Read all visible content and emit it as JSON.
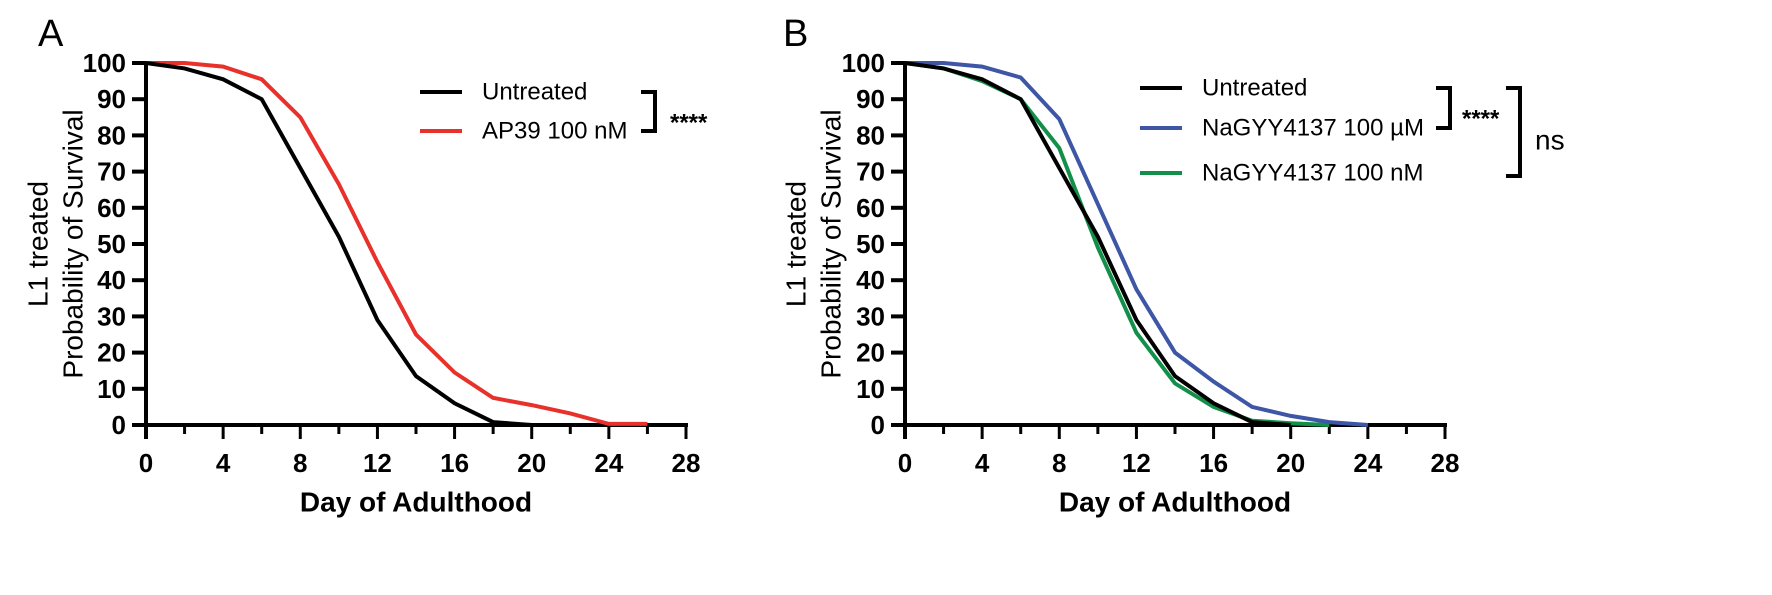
{
  "chart_data": [
    {
      "type": "line",
      "panel": "A",
      "title": "",
      "xlabel": "Day of Adulthood",
      "ylabel_lines": [
        "L1 treated",
        "Probability of Survival"
      ],
      "xlim": [
        0,
        28
      ],
      "ylim": [
        0,
        100
      ],
      "x_ticks": [
        0,
        4,
        8,
        12,
        16,
        20,
        24,
        28
      ],
      "x_minor_step": 2,
      "y_ticks": [
        0,
        10,
        20,
        30,
        40,
        50,
        60,
        70,
        80,
        90,
        100
      ],
      "grid": false,
      "legend_position": "top-right",
      "series": [
        {
          "name": "Untreated",
          "color": "#000000",
          "x": [
            0,
            2,
            4,
            6,
            8,
            10,
            12,
            14,
            16,
            18,
            20
          ],
          "y": [
            100,
            98.5,
            95.5,
            90,
            71,
            52,
            29,
            13.5,
            6,
            0.8,
            0
          ]
        },
        {
          "name": "AP39 100 nM",
          "color": "#e8312a",
          "x": [
            0,
            2,
            4,
            6,
            8,
            10,
            12,
            14,
            16,
            18,
            20,
            22,
            24,
            26
          ],
          "y": [
            100,
            100,
            99,
            95.5,
            85,
            66.5,
            45,
            25,
            14.5,
            7.5,
            5.5,
            3.2,
            0.3,
            0.3
          ]
        }
      ],
      "annotations": [
        {
          "type": "bracket",
          "between": [
            "Untreated",
            "AP39 100 nM"
          ],
          "label": "****"
        }
      ]
    },
    {
      "type": "line",
      "panel": "B",
      "title": "",
      "xlabel": "Day of Adulthood",
      "ylabel_lines": [
        "L1 treated",
        "Probability of Survival"
      ],
      "xlim": [
        0,
        28
      ],
      "ylim": [
        0,
        100
      ],
      "x_ticks": [
        0,
        4,
        8,
        12,
        16,
        20,
        24,
        28
      ],
      "x_minor_step": 2,
      "y_ticks": [
        0,
        10,
        20,
        30,
        40,
        50,
        60,
        70,
        80,
        90,
        100
      ],
      "grid": false,
      "legend_position": "top-right",
      "series": [
        {
          "name": "Untreated",
          "color": "#000000",
          "x": [
            0,
            2,
            4,
            6,
            8,
            10,
            12,
            14,
            16,
            18,
            20
          ],
          "y": [
            100,
            98.5,
            95.5,
            90,
            71,
            52,
            29,
            13.5,
            6,
            0.8,
            0
          ]
        },
        {
          "name": "NaGYY4137 100 µM",
          "color": "#3d56a6",
          "x": [
            0,
            2,
            4,
            6,
            8,
            10,
            12,
            14,
            16,
            18,
            20,
            22,
            24
          ],
          "y": [
            100,
            100,
            99,
            96,
            84.5,
            61,
            37.5,
            20,
            12,
            5,
            2.5,
            0.8,
            0
          ]
        },
        {
          "name": "NaGYY4137 100 nM",
          "color": "#12904a",
          "x": [
            0,
            2,
            4,
            6,
            8,
            10,
            12,
            14,
            16,
            18,
            20,
            22
          ],
          "y": [
            100,
            98.5,
            95,
            90,
            76.5,
            49,
            25.5,
            11.5,
            5,
            1.2,
            0.5,
            0
          ]
        }
      ],
      "annotations": [
        {
          "type": "bracket",
          "between": [
            "Untreated",
            "NaGYY4137 100 µM"
          ],
          "label": "****"
        },
        {
          "type": "bracket",
          "between": [
            "Untreated",
            "NaGYY4137 100 nM"
          ],
          "label": "ns"
        }
      ]
    }
  ]
}
